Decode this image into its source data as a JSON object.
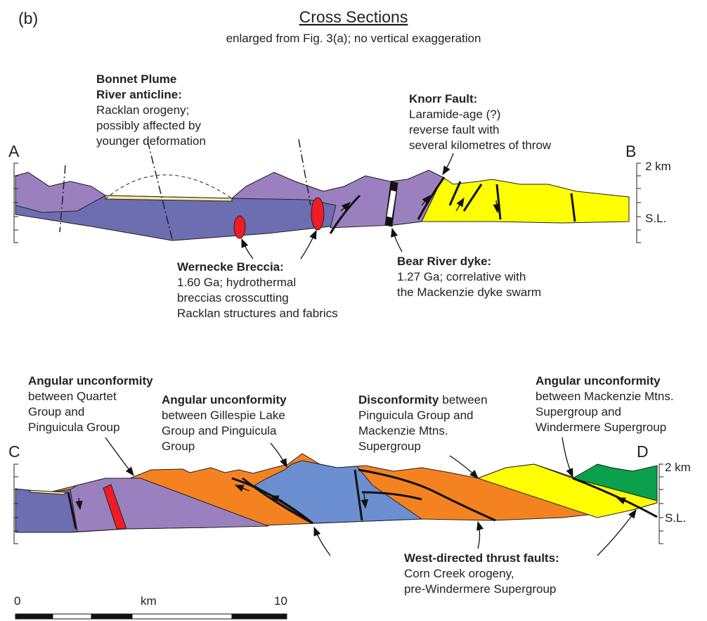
{
  "header": {
    "panel": "(b)",
    "title": "Cross Sections",
    "subtitle": "enlarged from Fig. 3(a); no vertical exaggeration"
  },
  "section_ab": {
    "left_end": "A",
    "right_end": "B",
    "scale_top": "2 km",
    "scale_sl": "S.L.",
    "annotations": [
      {
        "title": [
          "Bonnet Plume",
          "River anticline:"
        ],
        "lines": [
          "Racklan orogeny;",
          "possibly affected by",
          "younger deformation"
        ]
      },
      {
        "title": [
          "Knorr Fault:"
        ],
        "lines": [
          "Laramide-age (?)",
          "reverse fault with",
          "several kilometres of throw"
        ]
      },
      {
        "title": [
          "Wernecke Breccia:"
        ],
        "lines": [
          "1.60 Ga; hydrothermal",
          "breccias crosscutting",
          "Racklan structures and fabrics"
        ]
      },
      {
        "title": [
          "Bear River dyke:"
        ],
        "lines": [
          "1.27 Ga; correlative with",
          "the Mackenzie dyke swarm"
        ]
      }
    ]
  },
  "section_cd": {
    "left_end": "C",
    "right_end": "D",
    "scale_top": "2 km",
    "scale_sl": "S.L.",
    "annotations": [
      {
        "title": [
          "Angular unconformity"
        ],
        "lines": [
          "between Quartet",
          "Group and",
          "Pinguicula Group"
        ]
      },
      {
        "title": [
          "Angular unconformity"
        ],
        "lines": [
          "between Gillespie Lake",
          "Group and Pinguicula",
          "Group"
        ]
      },
      {
        "title": [
          "Disconformity"
        ],
        "title_suffix": "between",
        "lines": [
          "Pinguicula Group and",
          "Mackenzie Mtns.",
          "Supergroup"
        ]
      },
      {
        "title": [
          "Angular unconformity"
        ],
        "lines": [
          "between Mackenzie Mtns.",
          "Supergroup and",
          "Windermere Supergroup"
        ]
      },
      {
        "title": [
          "West-directed thrust faults:"
        ],
        "lines": [
          "Corn Creek orogeny,",
          "pre-Windermere Supergroup"
        ]
      }
    ]
  },
  "scale_bar": {
    "start": "0",
    "unit": "km",
    "end": "10"
  }
}
